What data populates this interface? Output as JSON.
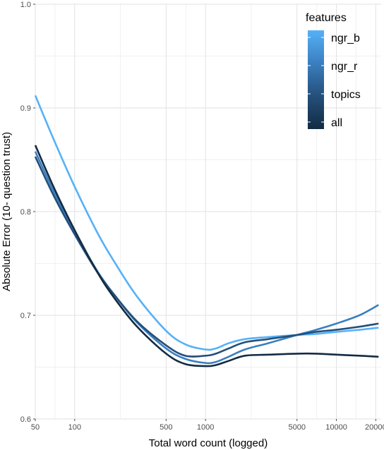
{
  "chart_data": {
    "type": "line",
    "xlabel": "Total word count (logged)",
    "ylabel": "Absolute Error (10- question trust)",
    "x_scale": "log",
    "xlim": [
      50,
      22000
    ],
    "ylim": [
      0.6,
      1.0
    ],
    "x_ticks": [
      50,
      100,
      500,
      1000,
      5000,
      10000,
      20000
    ],
    "x_tick_labels": [
      "50",
      "100",
      "500",
      "1000",
      "5000",
      "10000",
      "20000"
    ],
    "y_ticks": [
      0.6,
      0.7,
      0.8,
      0.9,
      1.0
    ],
    "y_tick_labels": [
      "0.6",
      "0.7",
      "0.8",
      "0.9",
      "1.0"
    ],
    "grid": true,
    "legend": {
      "title": "features",
      "placement": "top-right",
      "colorbar": true,
      "labels": [
        "ngr_b",
        "ngr_r",
        "topics",
        "all"
      ]
    },
    "series": [
      {
        "name": "ngr_b",
        "color": "#56B1F7",
        "x": [
          50,
          70,
          100,
          150,
          200,
          300,
          500,
          700,
          1000,
          1200,
          1500,
          2000,
          3000,
          5000,
          7000,
          10000,
          15000,
          21000
        ],
        "y": [
          0.912,
          0.868,
          0.824,
          0.779,
          0.752,
          0.718,
          0.685,
          0.672,
          0.667,
          0.668,
          0.673,
          0.677,
          0.679,
          0.681,
          0.682,
          0.684,
          0.686,
          0.688
        ]
      },
      {
        "name": "ngr_r",
        "color": "#3A7FBF",
        "x": [
          50,
          70,
          100,
          150,
          200,
          300,
          500,
          700,
          1000,
          1200,
          1500,
          2000,
          3000,
          5000,
          7000,
          10000,
          15000,
          21000
        ],
        "y": [
          0.858,
          0.818,
          0.78,
          0.742,
          0.72,
          0.693,
          0.668,
          0.658,
          0.654,
          0.655,
          0.66,
          0.667,
          0.673,
          0.681,
          0.686,
          0.692,
          0.7,
          0.71
        ]
      },
      {
        "name": "topics",
        "color": "#244F7A",
        "x": [
          50,
          70,
          100,
          150,
          200,
          300,
          500,
          700,
          1000,
          1200,
          1500,
          2000,
          3000,
          5000,
          7000,
          10000,
          15000,
          21000
        ],
        "y": [
          0.853,
          0.814,
          0.778,
          0.741,
          0.72,
          0.694,
          0.671,
          0.661,
          0.661,
          0.663,
          0.668,
          0.674,
          0.677,
          0.681,
          0.684,
          0.686,
          0.689,
          0.692
        ]
      },
      {
        "name": "all",
        "color": "#132B43",
        "x": [
          50,
          70,
          100,
          150,
          200,
          300,
          500,
          700,
          1000,
          1200,
          1500,
          2000,
          3000,
          5000,
          7000,
          10000,
          15000,
          21000
        ],
        "y": [
          0.864,
          0.822,
          0.782,
          0.741,
          0.717,
          0.689,
          0.663,
          0.653,
          0.651,
          0.652,
          0.656,
          0.661,
          0.662,
          0.663,
          0.663,
          0.662,
          0.661,
          0.66
        ]
      }
    ]
  }
}
